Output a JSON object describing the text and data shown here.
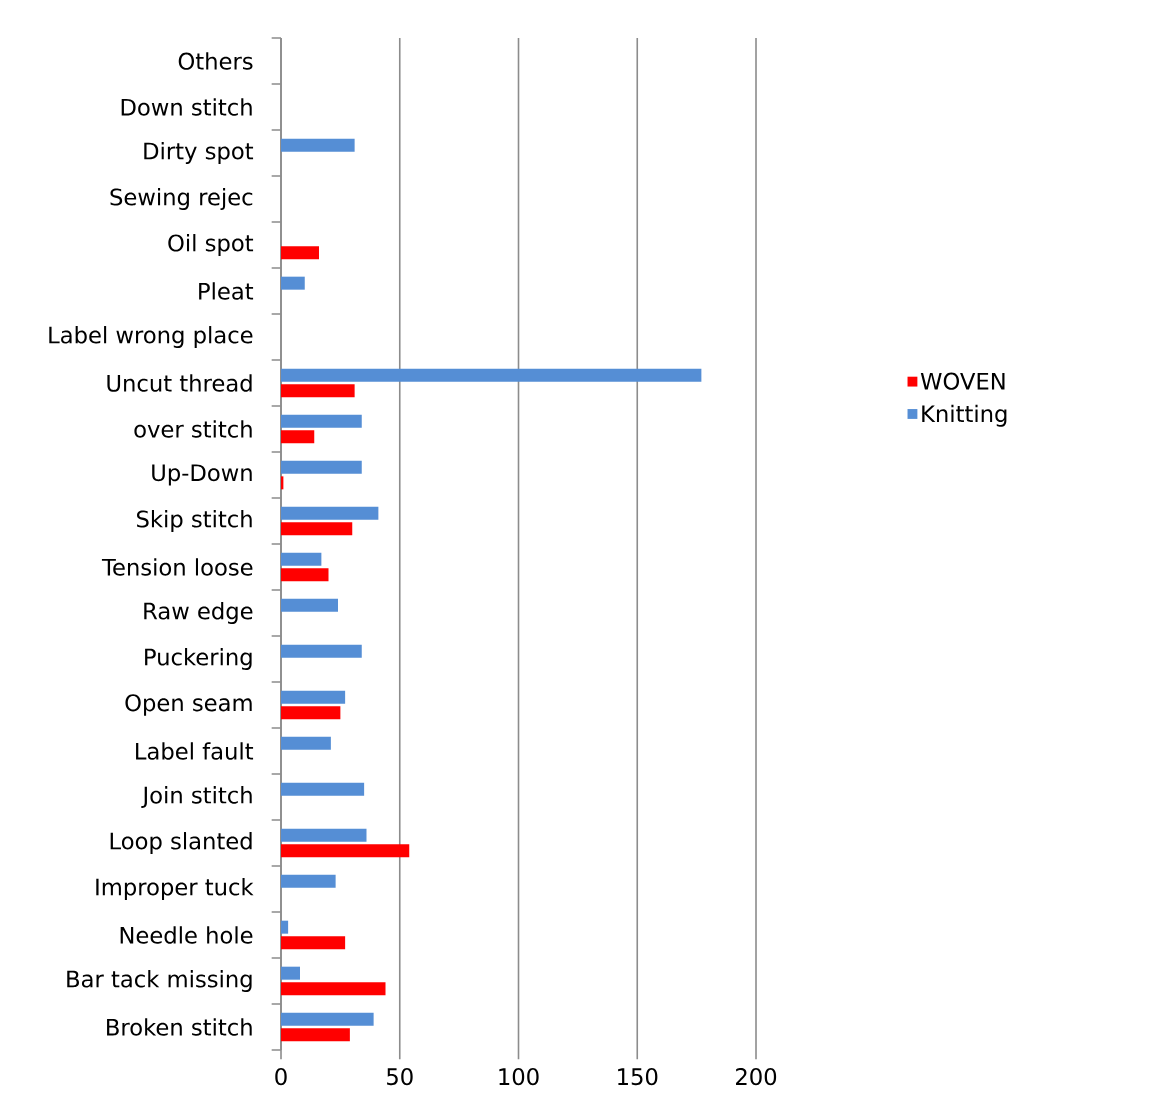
{
  "chart_data": {
    "type": "bar",
    "orientation": "horizontal",
    "categories": [
      "Others",
      "Down stitch",
      "Dirty spot",
      "Sewing rejec",
      "Oil spot",
      "Pleat",
      "Label wrong place",
      "Uncut thread",
      "over stitch",
      "Up-Down",
      "Skip stitch",
      "Tension loose",
      "Raw edge",
      "Puckering",
      "Open seam",
      "Label fault",
      "Join stitch",
      "Loop slanted",
      "Improper tuck",
      "Needle hole",
      "Bar tack missing",
      "Broken stitch"
    ],
    "series": [
      {
        "name": "WOVEN",
        "color": "#ff0000",
        "values": [
          null,
          null,
          null,
          null,
          16,
          null,
          null,
          31,
          14,
          1,
          30,
          20,
          null,
          null,
          25,
          null,
          null,
          54,
          null,
          27,
          44,
          29
        ]
      },
      {
        "name": "Knitting",
        "color": "#558ed5",
        "values": [
          null,
          null,
          31,
          null,
          null,
          10,
          null,
          177,
          34,
          34,
          41,
          17,
          24,
          34,
          27,
          21,
          35,
          36,
          23,
          3,
          8,
          39
        ]
      }
    ],
    "xlim": [
      0,
      200
    ],
    "xticks": [
      0,
      50,
      100,
      150,
      200
    ],
    "grid": "x",
    "legend": "right"
  }
}
